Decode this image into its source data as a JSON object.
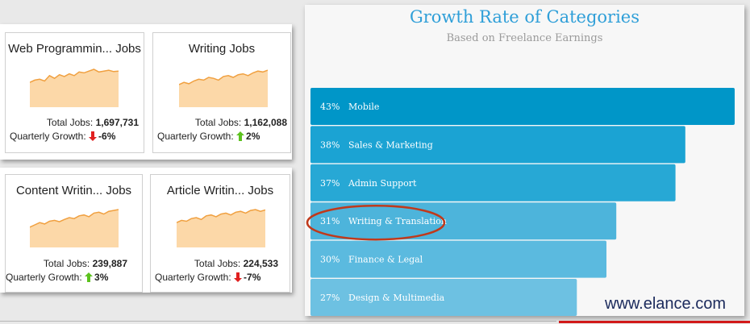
{
  "job_cards": [
    {
      "title": "Web Programmin... Jobs",
      "total_label": "Total Jobs:",
      "total": "1,697,731",
      "growth_label": "Quarterly Growth:",
      "direction": "down",
      "growth": "-6%"
    },
    {
      "title": "Writing Jobs",
      "total_label": "Total Jobs:",
      "total": "1,162,088",
      "growth_label": "Quarterly Growth:",
      "direction": "up",
      "growth": "2%"
    },
    {
      "title": "Content Writin... Jobs",
      "total_label": "Total Jobs:",
      "total": "239,887",
      "growth_label": "Quarterly Growth:",
      "direction": "up",
      "growth": "3%"
    },
    {
      "title": "Article Writin... Jobs",
      "total_label": "Total Jobs:",
      "total": "224,533",
      "growth_label": "Quarterly Growth:",
      "direction": "down",
      "growth": "-7%"
    }
  ],
  "colors": {
    "spark_fill": "#fcd8a8",
    "spark_line": "#f0a040",
    "up": "#5cc21e",
    "down": "#e02020",
    "highlight_ring": "#c0391b"
  },
  "chart_data": {
    "type": "bar",
    "orientation": "horizontal",
    "title": "Growth Rate of Categories",
    "subtitle": "Based on Freelance Earnings",
    "categories": [
      "Mobile",
      "Sales & Marketing",
      "Admin Support",
      "Writing & Translation",
      "Finance & Legal",
      "Design & Multimedia"
    ],
    "values": [
      43,
      38,
      37,
      31,
      30,
      27
    ],
    "unit": "%",
    "colors": [
      "#0096c8",
      "#1ba3d3",
      "#27a8d5",
      "#4db4db",
      "#5bbadf",
      "#6dc1e2"
    ],
    "highlighted": "Writing & Translation"
  },
  "watermark": "www.elance.com"
}
